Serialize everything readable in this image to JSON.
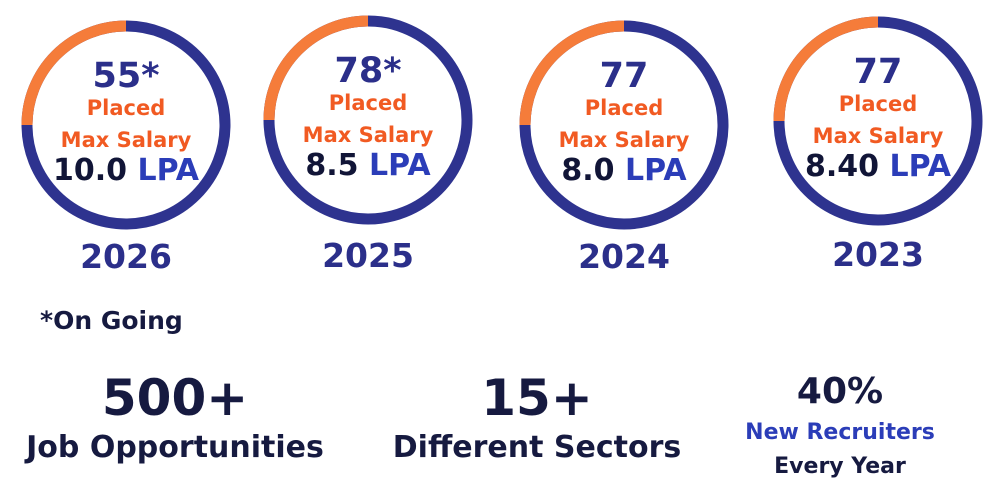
{
  "colors": {
    "ring_orange": "#f57c3a",
    "ring_navy": "#2e338f",
    "accent_orange": "#f15a22",
    "navy": "#2b2f8a",
    "blue": "#2b3db8",
    "dark": "#161a40"
  },
  "placements": [
    {
      "count": "55*",
      "placed_label": "Placed",
      "max_label": "Max Salary",
      "salary_value": "10.0",
      "salary_unit": "LPA",
      "year": "2026"
    },
    {
      "count": "78*",
      "placed_label": "Placed",
      "max_label": "Max Salary",
      "salary_value": "8.5",
      "salary_unit": "LPA",
      "year": "2025"
    },
    {
      "count": "77",
      "placed_label": "Placed",
      "max_label": "Max Salary",
      "salary_value": "8.0",
      "salary_unit": "LPA",
      "year": "2024"
    },
    {
      "count": "77",
      "placed_label": "Placed",
      "max_label": "Max Salary",
      "salary_value": "8.40",
      "salary_unit": "LPA",
      "year": "2023"
    }
  ],
  "note": "*On Going",
  "stats": [
    {
      "value": "500+",
      "label": "Job Opportunities"
    },
    {
      "value": "15+",
      "label": "Different Sectors"
    },
    {
      "value": "40%",
      "label_line1": "New Recruiters",
      "label_line2": "Every Year"
    }
  ]
}
